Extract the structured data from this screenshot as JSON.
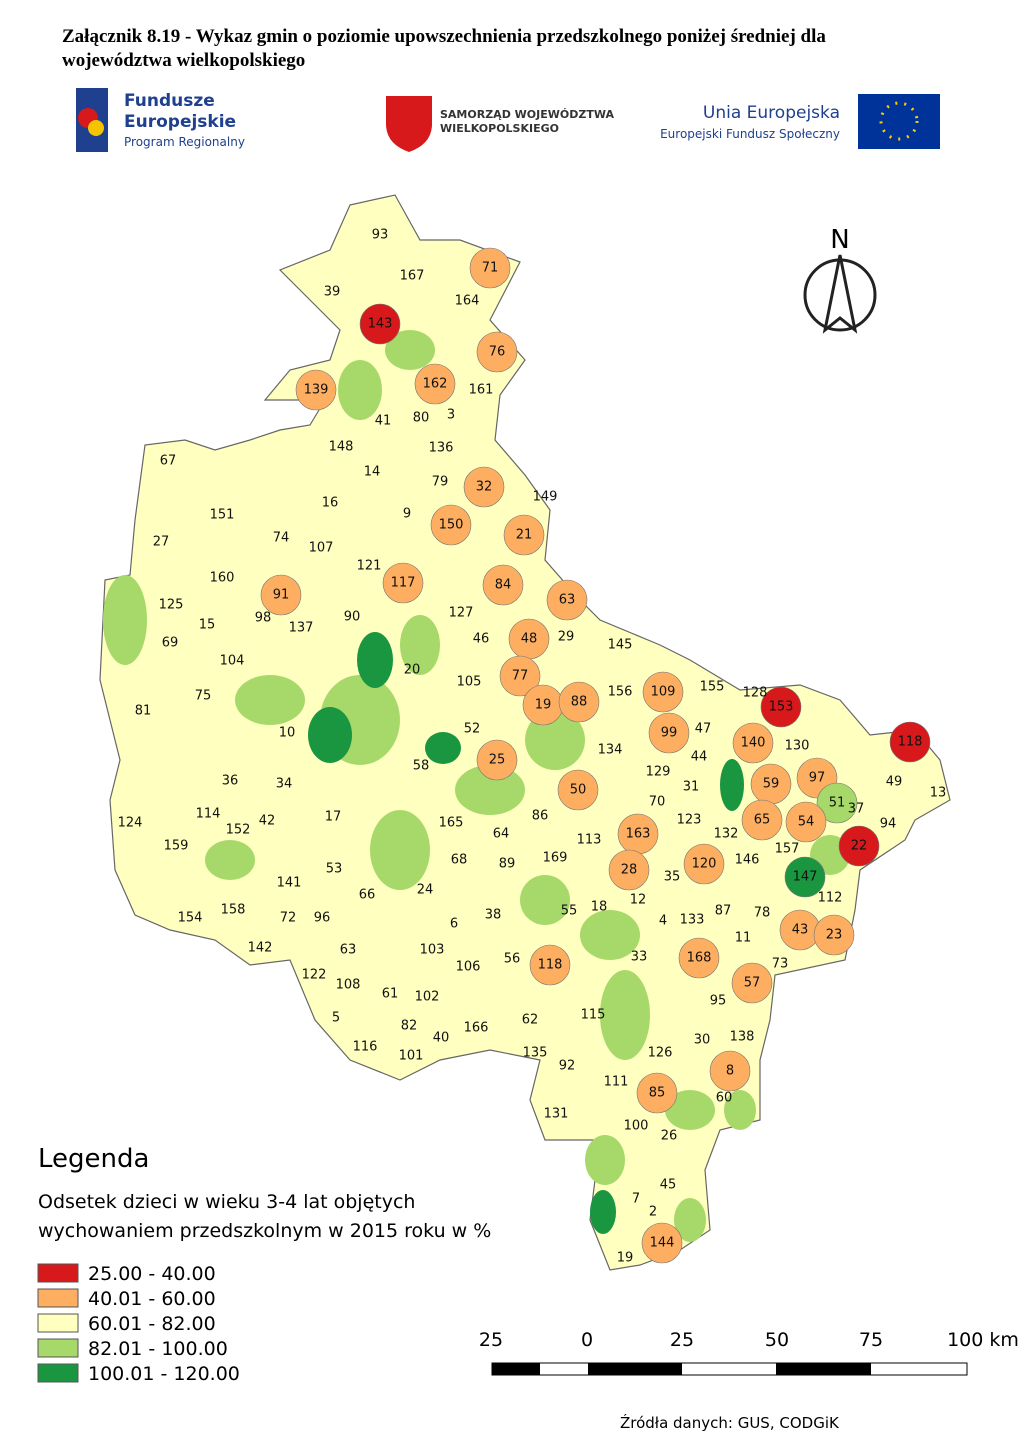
{
  "header": {
    "title_line1": "Załącznik 8.19 - Wykaz gmin o poziomie upowszechnienia przedszkolnego poniżej średniej dla",
    "title_line2": "województwa wielkopolskiego"
  },
  "logos": {
    "fe_line1": "Fundusze",
    "fe_line2": "Europejskie",
    "fe_line3": "Program Regionalny",
    "sw_line1": "SAMORZĄD WOJEWÓDZTWA",
    "sw_line2": "WIELKOPOLSKIEGO",
    "ue_line1": "Unia Europejska",
    "ue_line2": "Europejski Fundusz Społeczny"
  },
  "north": "N",
  "legend": {
    "title": "Legenda",
    "subtitle_line1": "Odsetek dzieci w wieku 3-4 lat objętych",
    "subtitle_line2": "wychowaniem przedszkolnym w 2015 roku w %",
    "items": [
      {
        "label": "25.00 - 40.00",
        "color": "#d7191c"
      },
      {
        "label": "40.01 - 60.00",
        "color": "#fdae61"
      },
      {
        "label": "60.01 - 82.00",
        "color": "#ffffc0"
      },
      {
        "label": "82.01 - 100.00",
        "color": "#a6d96a"
      },
      {
        "label": "100.01 - 120.00",
        "color": "#1a9641"
      }
    ]
  },
  "scale": {
    "labels": [
      "25",
      "0",
      "25",
      "50",
      "75",
      "100 km"
    ]
  },
  "source": "Źródła danych: GUS, CODGiK",
  "map": {
    "regions": {
      "labels": [
        "93",
        "71",
        "39",
        "167",
        "164",
        "143",
        "76",
        "139",
        "162",
        "161",
        "41",
        "80",
        "3",
        "148",
        "136",
        "67",
        "14",
        "79",
        "32",
        "149",
        "151",
        "16",
        "9",
        "150",
        "21",
        "27",
        "74",
        "107",
        "121",
        "160",
        "117",
        "84",
        "91",
        "63",
        "125",
        "98",
        "15",
        "137",
        "90",
        "127",
        "29",
        "145",
        "69",
        "46",
        "48",
        "104",
        "20",
        "105",
        "77",
        "109",
        "155",
        "128",
        "153",
        "75",
        "156",
        "19",
        "88",
        "81",
        "52",
        "99",
        "47",
        "140",
        "130",
        "118",
        "10",
        "134",
        "44",
        "25",
        "58",
        "129",
        "59",
        "97",
        "49",
        "13",
        "36",
        "34",
        "50",
        "31",
        "51",
        "37",
        "70",
        "114",
        "86",
        "123",
        "65",
        "54",
        "94",
        "124",
        "152",
        "42",
        "17",
        "165",
        "64",
        "132",
        "163",
        "113",
        "159",
        "157",
        "22",
        "146",
        "68",
        "89",
        "169",
        "120",
        "53",
        "28",
        "35",
        "141",
        "24",
        "66",
        "147",
        "112",
        "12",
        "55",
        "18",
        "87",
        "154",
        "158",
        "72",
        "96",
        "38",
        "6",
        "4",
        "133",
        "78",
        "43",
        "23",
        "142",
        "63",
        "103",
        "11",
        "33",
        "56",
        "118",
        "168",
        "73",
        "122",
        "106",
        "108",
        "57",
        "61",
        "102",
        "95",
        "115",
        "62",
        "5",
        "82",
        "166",
        "40",
        "138",
        "30",
        "116",
        "135",
        "101",
        "126",
        "92",
        "8",
        "111",
        "85",
        "60",
        "131",
        "100",
        "26",
        "45",
        "7",
        "2",
        "144",
        "19"
      ],
      "classes": [
        2,
        1,
        2,
        2,
        2,
        0,
        1,
        1,
        1,
        2,
        2,
        2,
        2,
        2,
        2,
        2,
        2,
        2,
        1,
        2,
        2,
        2,
        2,
        1,
        1,
        2,
        2,
        2,
        2,
        2,
        1,
        1,
        1,
        1,
        2,
        2,
        2,
        2,
        2,
        2,
        2,
        2,
        2,
        2,
        1,
        2,
        2,
        2,
        1,
        1,
        2,
        2,
        0,
        2,
        2,
        1,
        1,
        2,
        2,
        1,
        2,
        1,
        2,
        0,
        2,
        2,
        2,
        1,
        2,
        2,
        1,
        1,
        2,
        2,
        2,
        2,
        1,
        2,
        3,
        2,
        2,
        2,
        2,
        2,
        1,
        1,
        2,
        2,
        2,
        2,
        2,
        2,
        2,
        2,
        1,
        2,
        2,
        2,
        0,
        2,
        2,
        2,
        2,
        1,
        2,
        1,
        2,
        2,
        2,
        2,
        4,
        2,
        2,
        2,
        2,
        2,
        2,
        2,
        2,
        2,
        2,
        2,
        2,
        2,
        2,
        1,
        1,
        2,
        2,
        2,
        2,
        2,
        2,
        1,
        1,
        2,
        2,
        2,
        2,
        1,
        2,
        2,
        2,
        2,
        2,
        2,
        2,
        2,
        2,
        2,
        2,
        2,
        2,
        2,
        2,
        2,
        1,
        2,
        1,
        2,
        2,
        2,
        2,
        2,
        2,
        2,
        1,
        2
      ]
    }
  }
}
